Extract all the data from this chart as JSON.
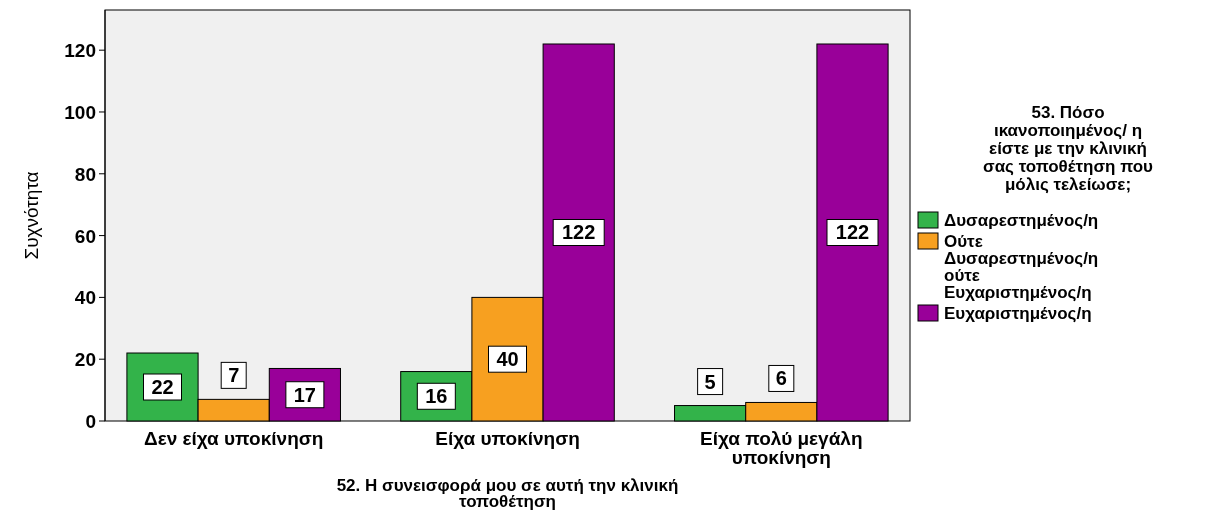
{
  "chart_data": {
    "type": "bar",
    "xlabel": "52. Η συνεισφορά μου σε αυτή την κλινική τοποθέτηση",
    "ylabel": "Συχνότητα",
    "legend_title": "53. Πόσο ικανοποιημένος/ η είστε με την κλινική σας τοποθέτηση που μόλις τελείωσε;",
    "categories": [
      "Δεν είχα υποκίνηση",
      "Είχα υποκίνηση",
      "Είχα πολύ μεγάλη υποκίνηση"
    ],
    "series": [
      {
        "name": "Δυσαρεστημένος/η",
        "color": "#33b34a",
        "values": [
          22,
          16,
          5
        ]
      },
      {
        "name": "Ούτε Δυσαρεστημένος/η ούτε Ευχαριστημένος/η",
        "color": "#f7a020",
        "values": [
          7,
          40,
          6
        ]
      },
      {
        "name": "Ευχαριστημένος/η",
        "color": "#990099",
        "values": [
          17,
          122,
          122
        ]
      }
    ],
    "ylim": [
      0,
      133
    ],
    "yticks": [
      0,
      20,
      40,
      60,
      80,
      100,
      120
    ],
    "grid": false,
    "legend": "right",
    "data_labels": true
  }
}
